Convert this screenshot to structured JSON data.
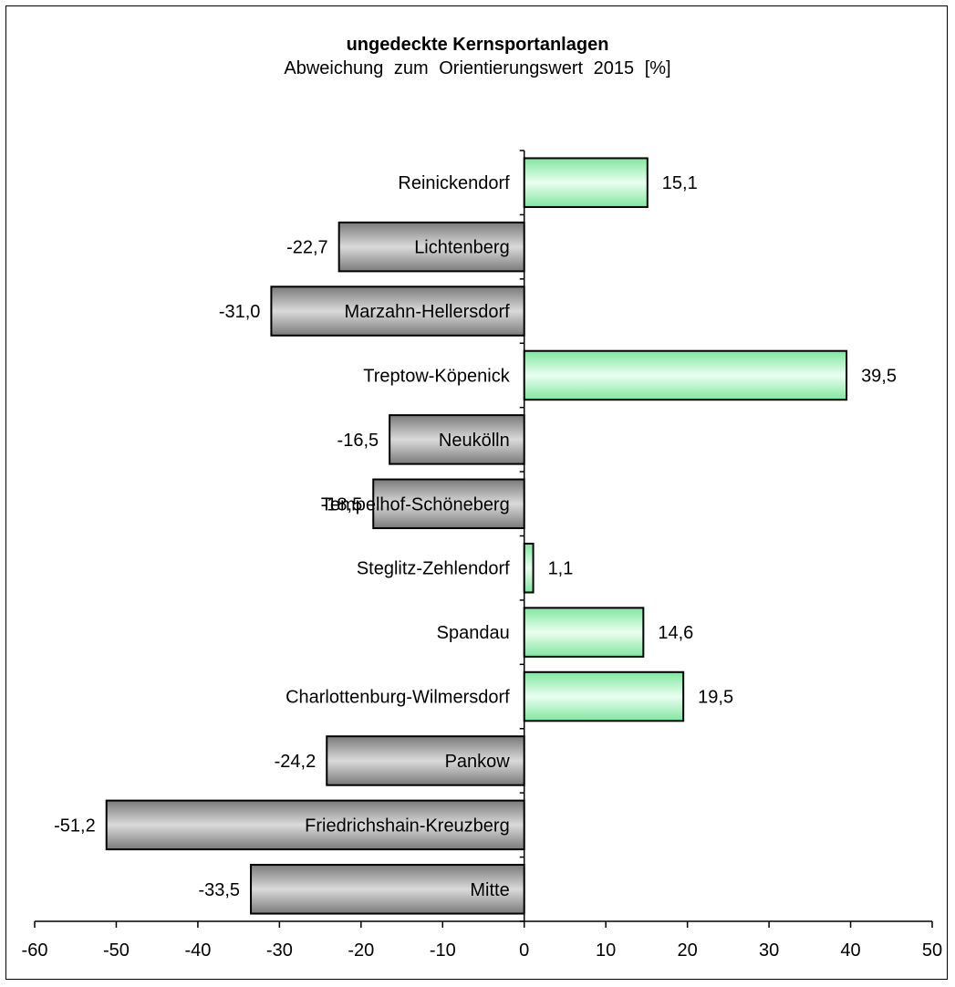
{
  "chart_data": {
    "type": "bar",
    "orientation": "horizontal",
    "title": "ungedeckte Kernsportanlagen",
    "subtitle": "Abweichung  zum  Orientierungswert 2015 [%]",
    "categories": [
      "Reinickendorf",
      "Lichtenberg",
      "Marzahn-Hellersdorf",
      "Treptow-Köpenick",
      "Neukölln",
      "Tempelhof-Schöneberg",
      "Steglitz-Zehlendorf",
      "Spandau",
      "Charlottenburg-Wilmersdorf",
      "Pankow",
      "Friedrichshain-Kreuzberg",
      "Mitte"
    ],
    "values": [
      15.1,
      -22.7,
      -31.0,
      39.5,
      -16.5,
      -18.5,
      1.1,
      14.6,
      19.5,
      -24.2,
      -51.2,
      -33.5
    ],
    "value_labels": [
      "15,1",
      "-22,7",
      "-31,0",
      "39,5",
      "-16,5",
      "-18,5",
      "1,1",
      "14,6",
      "19,5",
      "-24,2",
      "-51,2",
      "-33,5"
    ],
    "xlim": [
      -60,
      50
    ],
    "xticks": [
      -60,
      -50,
      -40,
      -30,
      -20,
      -10,
      0,
      10,
      20,
      30,
      40,
      50
    ],
    "grid": false,
    "legend": "none",
    "colors": {
      "positive_light": "#eafff0",
      "positive_dark": "#80e6a0",
      "negative_light": "#dadada",
      "negative_dark": "#7a7a7a",
      "outline": "#000000"
    }
  }
}
